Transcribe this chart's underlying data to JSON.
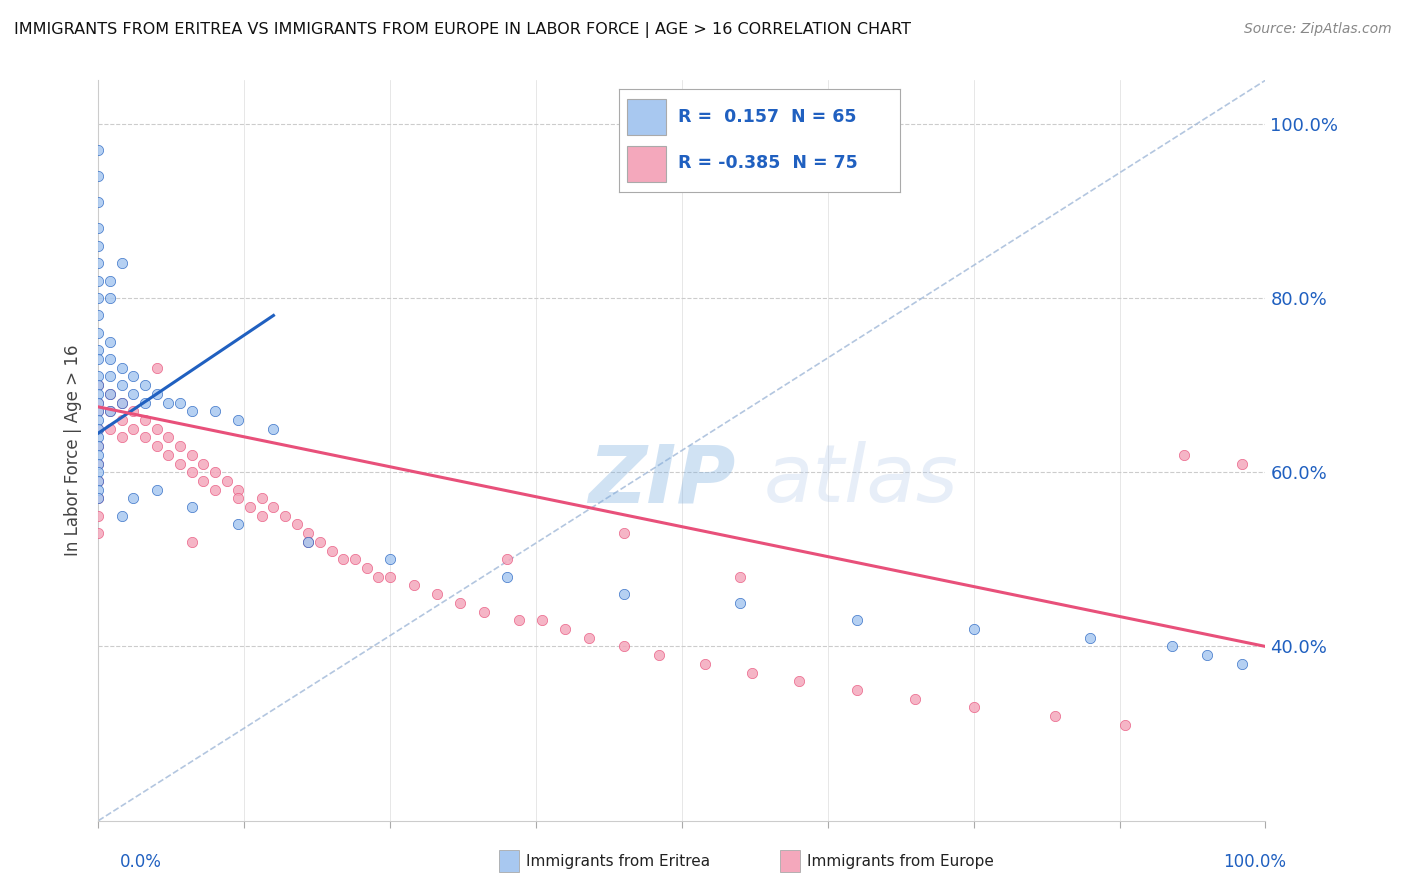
{
  "title": "IMMIGRANTS FROM ERITREA VS IMMIGRANTS FROM EUROPE IN LABOR FORCE | AGE > 16 CORRELATION CHART",
  "source": "Source: ZipAtlas.com",
  "ylabel": "In Labor Force | Age > 16",
  "watermark": "ZIPatlas",
  "blue_color": "#a8c8f0",
  "pink_color": "#f4a8bc",
  "blue_line_color": "#2060c0",
  "pink_line_color": "#e8507a",
  "ref_line_color": "#a0b8d8",
  "ytick_labels": [
    "40.0%",
    "60.0%",
    "80.0%",
    "100.0%"
  ],
  "ytick_vals": [
    0.4,
    0.6,
    0.8,
    1.0
  ],
  "ymin": 0.2,
  "ymax": 1.05,
  "xmin": 0.0,
  "xmax": 1.0,
  "blue_trend_x": [
    0.0,
    0.15
  ],
  "blue_trend_y": [
    0.645,
    0.78
  ],
  "pink_trend_x": [
    0.0,
    1.0
  ],
  "pink_trend_y": [
    0.675,
    0.4
  ],
  "ref_line_x": [
    0.0,
    1.0
  ],
  "ref_line_y": [
    0.2,
    1.05
  ],
  "legend_r_blue": "R =  0.157",
  "legend_n_blue": "N = 65",
  "legend_r_pink": "R = -0.385",
  "legend_n_pink": "N = 75",
  "legend_text_color": "#2060c0",
  "blue_pts_x": [
    0.0,
    0.0,
    0.0,
    0.0,
    0.0,
    0.0,
    0.0,
    0.0,
    0.0,
    0.0,
    0.0,
    0.0,
    0.0,
    0.0,
    0.0,
    0.0,
    0.0,
    0.0,
    0.0,
    0.0,
    0.0,
    0.0,
    0.0,
    0.0,
    0.0,
    0.0,
    0.0,
    0.01,
    0.01,
    0.01,
    0.01,
    0.01,
    0.02,
    0.02,
    0.02,
    0.03,
    0.03,
    0.04,
    0.04,
    0.05,
    0.06,
    0.07,
    0.08,
    0.1,
    0.12,
    0.15,
    0.02,
    0.03,
    0.05,
    0.08,
    0.12,
    0.18,
    0.25,
    0.35,
    0.45,
    0.55,
    0.65,
    0.75,
    0.85,
    0.92,
    0.95,
    0.98,
    0.01,
    0.01,
    0.02
  ],
  "blue_pts_y": [
    0.97,
    0.94,
    0.91,
    0.88,
    0.86,
    0.84,
    0.82,
    0.8,
    0.78,
    0.76,
    0.74,
    0.73,
    0.71,
    0.7,
    0.69,
    0.68,
    0.67,
    0.66,
    0.65,
    0.64,
    0.63,
    0.62,
    0.61,
    0.6,
    0.59,
    0.58,
    0.57,
    0.75,
    0.73,
    0.71,
    0.69,
    0.67,
    0.72,
    0.7,
    0.68,
    0.71,
    0.69,
    0.7,
    0.68,
    0.69,
    0.68,
    0.68,
    0.67,
    0.67,
    0.66,
    0.65,
    0.55,
    0.57,
    0.58,
    0.56,
    0.54,
    0.52,
    0.5,
    0.48,
    0.46,
    0.45,
    0.43,
    0.42,
    0.41,
    0.4,
    0.39,
    0.38,
    0.8,
    0.82,
    0.84
  ],
  "pink_pts_x": [
    0.0,
    0.0,
    0.0,
    0.0,
    0.0,
    0.0,
    0.0,
    0.0,
    0.0,
    0.0,
    0.01,
    0.01,
    0.01,
    0.02,
    0.02,
    0.02,
    0.03,
    0.03,
    0.04,
    0.04,
    0.05,
    0.05,
    0.06,
    0.06,
    0.07,
    0.07,
    0.08,
    0.08,
    0.09,
    0.09,
    0.1,
    0.1,
    0.11,
    0.12,
    0.12,
    0.13,
    0.14,
    0.14,
    0.15,
    0.16,
    0.17,
    0.18,
    0.18,
    0.19,
    0.2,
    0.21,
    0.22,
    0.23,
    0.24,
    0.25,
    0.27,
    0.29,
    0.31,
    0.33,
    0.36,
    0.38,
    0.4,
    0.42,
    0.45,
    0.48,
    0.52,
    0.56,
    0.6,
    0.65,
    0.7,
    0.75,
    0.82,
    0.88,
    0.93,
    0.98,
    0.35,
    0.45,
    0.55,
    0.05,
    0.08
  ],
  "pink_pts_y": [
    0.7,
    0.68,
    0.67,
    0.65,
    0.63,
    0.61,
    0.59,
    0.57,
    0.55,
    0.53,
    0.69,
    0.67,
    0.65,
    0.68,
    0.66,
    0.64,
    0.67,
    0.65,
    0.66,
    0.64,
    0.65,
    0.63,
    0.64,
    0.62,
    0.63,
    0.61,
    0.62,
    0.6,
    0.61,
    0.59,
    0.6,
    0.58,
    0.59,
    0.58,
    0.57,
    0.56,
    0.57,
    0.55,
    0.56,
    0.55,
    0.54,
    0.53,
    0.52,
    0.52,
    0.51,
    0.5,
    0.5,
    0.49,
    0.48,
    0.48,
    0.47,
    0.46,
    0.45,
    0.44,
    0.43,
    0.43,
    0.42,
    0.41,
    0.4,
    0.39,
    0.38,
    0.37,
    0.36,
    0.35,
    0.34,
    0.33,
    0.32,
    0.31,
    0.62,
    0.61,
    0.5,
    0.53,
    0.48,
    0.72,
    0.52
  ]
}
